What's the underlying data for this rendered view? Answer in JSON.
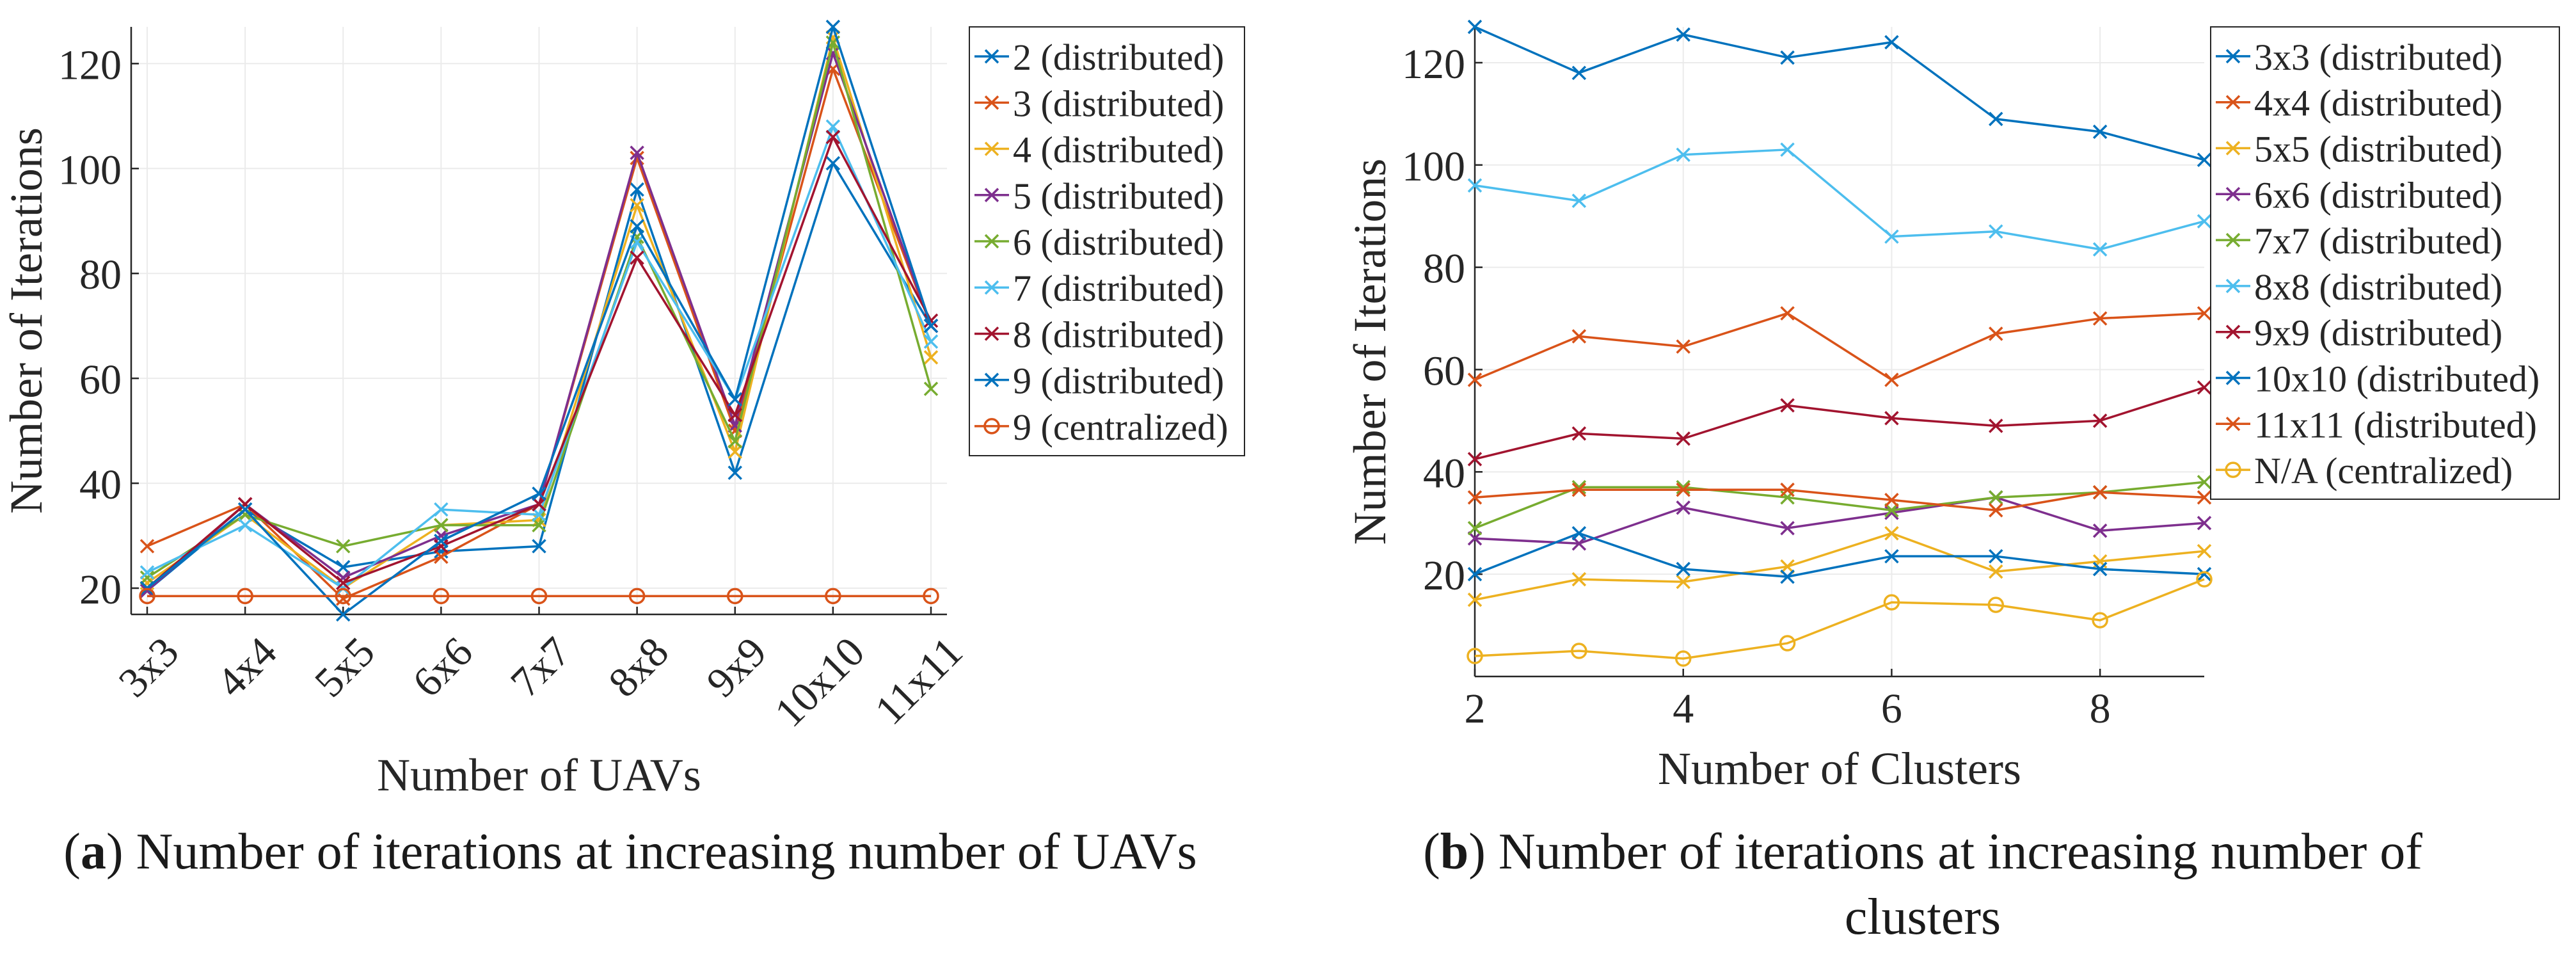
{
  "chart_data": [
    {
      "type": "line",
      "xlabel": "Number of UAVs",
      "ylabel": "Number of Iterations",
      "categories": [
        "3x3",
        "4x4",
        "5x5",
        "6x6",
        "7x7",
        "8x8",
        "9x9",
        "10x10",
        "11x11"
      ],
      "ylim": [
        15,
        127
      ],
      "yticks": [
        20,
        40,
        60,
        80,
        100,
        120
      ],
      "grid": true,
      "legend_position": "right",
      "caption_letter": "a",
      "caption": "Number of iterations at increasing number of UAVs",
      "series": [
        {
          "name": "2 (distributed)",
          "color": "#0072BD",
          "marker": "x",
          "values": [
            19.5,
            35,
            24,
            27,
            28,
            96,
            42,
            101,
            70
          ]
        },
        {
          "name": "3 (distributed)",
          "color": "#D95319",
          "marker": "x",
          "values": [
            28,
            36,
            18,
            26,
            36,
            102,
            50,
            119,
            70
          ]
        },
        {
          "name": "4 (distributed)",
          "color": "#EDB120",
          "marker": "x",
          "values": [
            21,
            34,
            20,
            32,
            33,
            93,
            46,
            125,
            64
          ]
        },
        {
          "name": "5 (distributed)",
          "color": "#7E2F8E",
          "marker": "x",
          "values": [
            19.5,
            36,
            22,
            30,
            36,
            103,
            51,
            122,
            70
          ]
        },
        {
          "name": "6 (distributed)",
          "color": "#77AC30",
          "marker": "x",
          "values": [
            22,
            34,
            28,
            32,
            32,
            87,
            48,
            124,
            58
          ]
        },
        {
          "name": "7 (distributed)",
          "color": "#4DBEEE",
          "marker": "x",
          "values": [
            23,
            32,
            20,
            35,
            34,
            86,
            56,
            108,
            67
          ]
        },
        {
          "name": "8 (distributed)",
          "color": "#A2142F",
          "marker": "x",
          "values": [
            20,
            36,
            21,
            28,
            36,
            83,
            53,
            106,
            71
          ]
        },
        {
          "name": "9 (distributed)",
          "color": "#0072BD",
          "marker": "x",
          "values": [
            20,
            35,
            15,
            29,
            38,
            89,
            56,
            127,
            70
          ]
        },
        {
          "name": "9 (centralized)",
          "color": "#D95319",
          "marker": "o",
          "values": [
            18.5,
            18.5,
            18.5,
            18.5,
            18.5,
            18.5,
            18.5,
            18.5,
            18.5
          ]
        }
      ]
    },
    {
      "type": "line",
      "xlabel": "Number of Clusters",
      "ylabel": "Number of Iterations",
      "x": [
        2,
        3,
        4,
        5,
        6,
        7,
        8,
        9
      ],
      "xlim": [
        2,
        9
      ],
      "xticks": [
        2,
        4,
        6,
        8
      ],
      "ylim": [
        0,
        127
      ],
      "yticks": [
        20,
        40,
        60,
        80,
        100,
        120
      ],
      "grid": true,
      "legend_position": "top-right",
      "caption_letter": "b",
      "caption": "Number of iterations at increasing number of clusters",
      "series": [
        {
          "name": "3x3 (distributed)",
          "color": "#0072BD",
          "marker": "x",
          "values": [
            127,
            118,
            125.5,
            121,
            124,
            109,
            106.5,
            101
          ]
        },
        {
          "name": "4x4 (distributed)",
          "color": "#D95319",
          "marker": "x",
          "values": [
            58,
            66.5,
            64.5,
            71,
            58,
            67,
            70,
            71
          ]
        },
        {
          "name": "5x5 (distributed)",
          "color": "#EDB120",
          "marker": "x",
          "values": [
            15,
            19,
            18.5,
            21.5,
            28,
            20.5,
            22.5,
            24.5
          ]
        },
        {
          "name": "6x6 (distributed)",
          "color": "#7E2F8E",
          "marker": "x",
          "values": [
            27,
            26,
            33,
            29,
            32,
            35,
            28.5,
            30
          ]
        },
        {
          "name": "7x7 (distributed)",
          "color": "#77AC30",
          "marker": "x",
          "values": [
            29,
            37,
            37,
            35,
            32.5,
            35,
            36,
            38
          ]
        },
        {
          "name": "8x8 (distributed)",
          "color": "#4DBEEE",
          "marker": "x",
          "values": [
            96,
            93,
            102,
            103,
            86,
            87,
            83.5,
            89
          ]
        },
        {
          "name": "9x9 (distributed)",
          "color": "#A2142F",
          "marker": "x",
          "values": [
            42.5,
            47.5,
            46.5,
            53,
            50.5,
            49,
            50,
            56.5
          ]
        },
        {
          "name": "10x10 (distributed)",
          "color": "#0072BD",
          "marker": "x",
          "values": [
            20,
            28,
            21,
            19.5,
            23.5,
            23.5,
            21,
            20
          ]
        },
        {
          "name": "11x11 (distributed)",
          "color": "#D95319",
          "marker": "x",
          "values": [
            35,
            36.5,
            36.5,
            36.5,
            34.5,
            32.5,
            36,
            35
          ]
        },
        {
          "name": "N/A (centralized)",
          "color": "#EDB120",
          "marker": "o",
          "values": [
            4,
            5,
            3.5,
            6.5,
            14.5,
            14,
            11,
            19
          ]
        }
      ]
    }
  ]
}
